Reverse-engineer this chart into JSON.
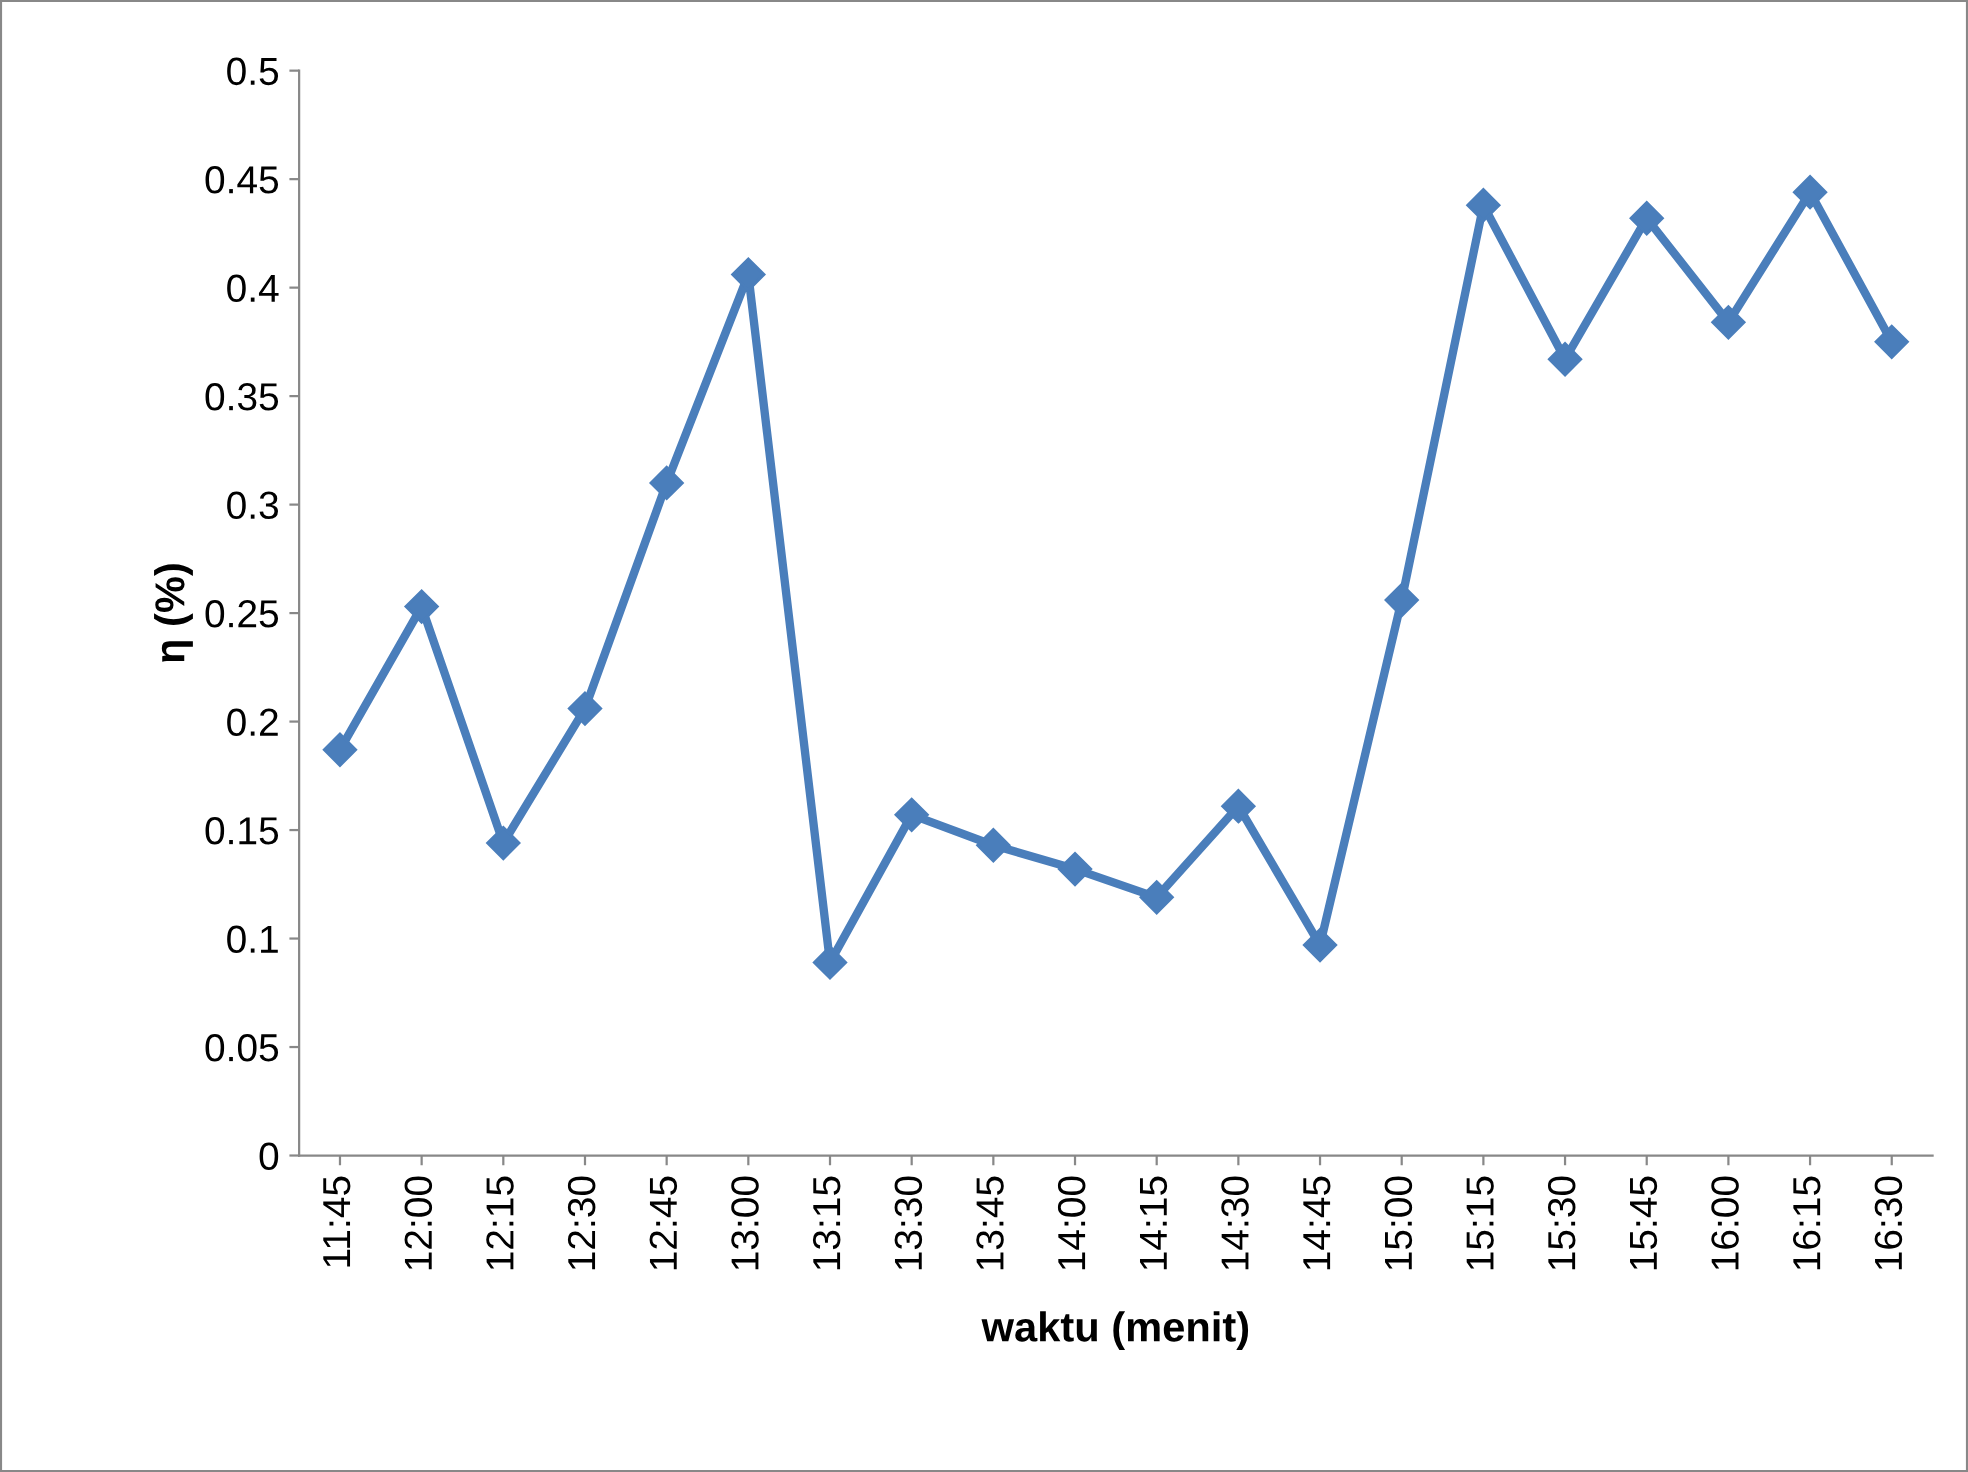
{
  "chart_data": {
    "type": "line",
    "xlabel": "waktu (menit)",
    "ylabel": "η (%)",
    "categories": [
      "11:45",
      "12:00",
      "12:15",
      "12:30",
      "12:45",
      "13:00",
      "13:15",
      "13:30",
      "13:45",
      "14:00",
      "14:15",
      "14:30",
      "14:45",
      "15:00",
      "15:15",
      "15:30",
      "15:45",
      "16:00",
      "16:15",
      "16:30"
    ],
    "series": [
      {
        "color": "#4a7ebb",
        "values": [
          0.187,
          0.253,
          0.144,
          0.206,
          0.31,
          0.406,
          0.089,
          0.157,
          0.143,
          0.132,
          0.119,
          0.161,
          0.097,
          0.256,
          0.438,
          0.367,
          0.432,
          0.384,
          0.444,
          0.375
        ]
      }
    ],
    "ylim": [
      0,
      0.5
    ],
    "yticks": [
      {
        "value": 0,
        "label": "0"
      },
      0.05,
      0.1,
      0.15,
      0.2,
      0.25,
      0.3,
      0.35,
      0.4,
      0.45,
      0.5
    ],
    "marker": "diamond",
    "line_style": "solid",
    "grid": false,
    "legend": false
  }
}
